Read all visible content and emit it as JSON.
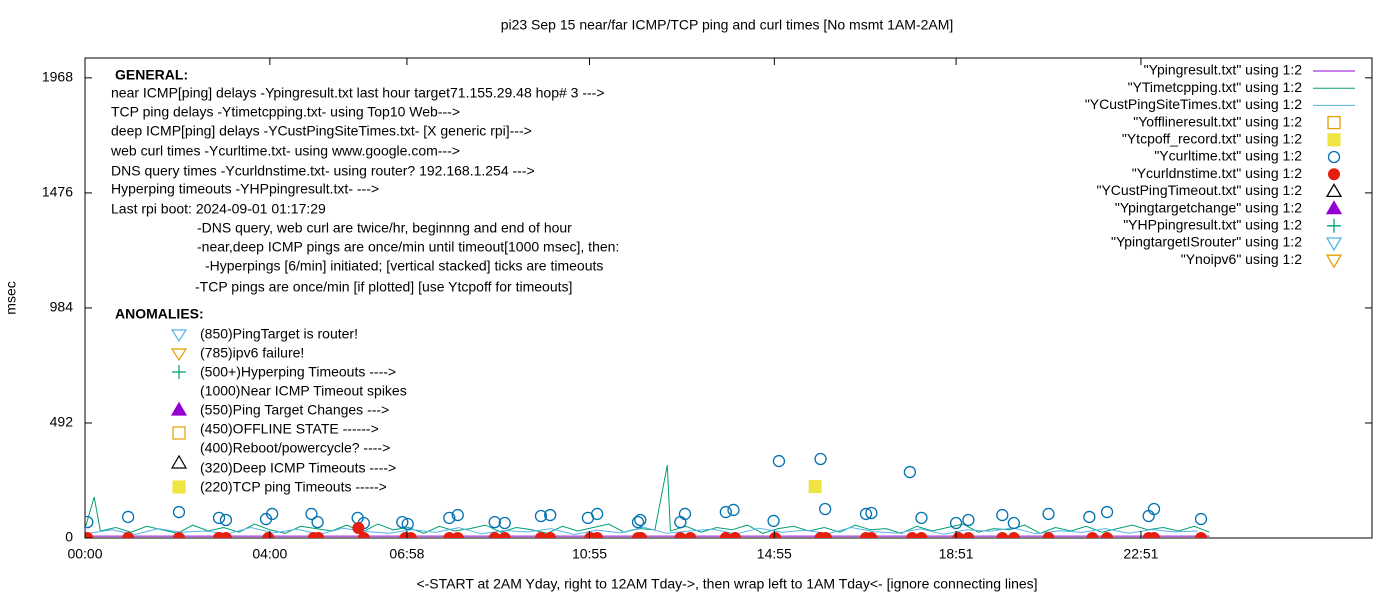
{
  "chart_data": {
    "type": "scatter",
    "title": "pi23 Sep 15  near/far ICMP/TCP ping and curl times [No msmt 1AM-2AM]",
    "xlabel": "<-START at 2AM Yday, right to 12AM Tday->, then wrap left to 1AM Tday<- [ignore connecting lines]",
    "ylabel": "msec",
    "xlim": [
      0,
      1671
    ],
    "ylim": [
      0,
      2053
    ],
    "xticks": [
      {
        "value": 0,
        "label": "00:00"
      },
      {
        "value": 240,
        "label": "04:00"
      },
      {
        "value": 418,
        "label": "06:58"
      },
      {
        "value": 655,
        "label": "10:55"
      },
      {
        "value": 895,
        "label": "14:55"
      },
      {
        "value": 1131,
        "label": "18:51"
      },
      {
        "value": 1371,
        "label": "22:51"
      }
    ],
    "yticks": [
      0,
      492,
      984,
      1476,
      1968
    ],
    "legend": "top-right",
    "annotations": [
      "GENERAL:",
      "near ICMP[ping] delays -Ypingresult.txt last hour target71.155.29.48 hop# 3 --->",
      "TCP ping delays -Ytimetcpping.txt- using Top10  Web--->",
      "deep ICMP[ping] delays -YCustPingSiteTimes.txt- [X generic rpi]--->",
      "web curl times -Ycurltime.txt- using www.google.com--->",
      "DNS query times -Ycurldnstime.txt- using router? 192.168.1.254  --->",
      "Hyperping timeouts -YHPpingresult.txt- --->",
      "Last rpi boot: 2024-09-01 01:17:29",
      "-DNS query, web curl are twice/hr, beginnng and end of hour",
      "-near,deep ICMP pings are once/min until timeout[1000 msec], then:",
      "-Hyperpings [6/min] initiated; [vertical stacked] ticks are timeouts",
      "-TCP pings are once/min  [if plotted] [use Ytcpoff for timeouts]",
      "ANOMALIES:",
      "(850)PingTarget is router!",
      "(785)ipv6 failure!",
      "(500+)Hyperping Timeouts ---->",
      "(1000)Near ICMP Timeout spikes",
      "(550)Ping Target Changes --->",
      "(450)OFFLINE STATE ------>",
      "(400)Reboot/powercycle? ---->",
      "(320)Deep ICMP Timeouts ---->",
      "(220)TCP ping Timeouts ----->"
    ],
    "series": [
      {
        "name": "\"Ypingresult.txt\" using 1:2",
        "color": "#9400d3",
        "style": "line",
        "x": [
          0,
          480,
          960,
          1460
        ],
        "values": [
          8,
          8,
          8,
          8
        ]
      },
      {
        "name": "\"YTimetcpping.txt\" using 1:2",
        "color": "#009e73",
        "style": "line",
        "x": [
          0,
          12,
          20,
          40,
          60,
          80,
          100,
          120,
          140,
          160,
          180,
          200,
          220,
          240,
          260,
          280,
          300,
          320,
          340,
          360,
          380,
          400,
          420,
          440,
          460,
          480,
          500,
          520,
          540,
          560,
          580,
          600,
          620,
          640,
          660,
          680,
          700,
          720,
          740,
          756,
          760,
          780,
          800,
          820,
          840,
          860,
          880,
          900,
          920,
          940,
          960,
          980,
          1000,
          1020,
          1040,
          1060,
          1080,
          1100,
          1120,
          1140,
          1160,
          1180,
          1200,
          1220,
          1240,
          1260,
          1280,
          1300,
          1320,
          1340,
          1360,
          1380,
          1400,
          1420,
          1440,
          1460
        ],
        "values": [
          40,
          175,
          30,
          45,
          25,
          50,
          35,
          20,
          55,
          30,
          45,
          25,
          60,
          35,
          20,
          50,
          40,
          30,
          55,
          25,
          60,
          35,
          45,
          20,
          50,
          30,
          40,
          55,
          25,
          45,
          35,
          20,
          50,
          30,
          45,
          60,
          25,
          40,
          35,
          312,
          30,
          50,
          25,
          45,
          35,
          55,
          20,
          40,
          50,
          30,
          45,
          25,
          55,
          35,
          40,
          20,
          50,
          30,
          45,
          60,
          25,
          40,
          35,
          55,
          20,
          45,
          30,
          50,
          25,
          40,
          55,
          35,
          45,
          30,
          50,
          25
        ]
      },
      {
        "name": "\"YCustPingSiteTimes.txt\" using 1:2",
        "color": "#56b4e9",
        "style": "line",
        "x": [
          5,
          35,
          65,
          95,
          125,
          155,
          185,
          215,
          245,
          275,
          305,
          335,
          365,
          395,
          425,
          455,
          485,
          515,
          545,
          575,
          605,
          635,
          665,
          695,
          725,
          755,
          785,
          815,
          845,
          875,
          905,
          935,
          965,
          995,
          1025,
          1055,
          1085,
          1115,
          1145,
          1175,
          1205,
          1235,
          1265,
          1295,
          1325,
          1355,
          1385,
          1415,
          1445
        ],
        "values": [
          20,
          35,
          15,
          40,
          25,
          30,
          18,
          45,
          22,
          38,
          16,
          42,
          28,
          20,
          36,
          24,
          44,
          18,
          32,
          26,
          40,
          15,
          34,
          22,
          46,
          20,
          30,
          38,
          17,
          42,
          25,
          33,
          19,
          45,
          27,
          21,
          39,
          16,
          35,
          29,
          43,
          18,
          31,
          24,
          40,
          20,
          36,
          26,
          30
        ]
      },
      {
        "name": "\"Yofflineresult.txt\" using 1:2",
        "color": "#e69f00",
        "style": "square-open",
        "x": [],
        "values": []
      },
      {
        "name": "\"Ytcpoff_record.txt\" using 1:2",
        "color": "#f0e442",
        "style": "square-filled",
        "x": [
          948
        ],
        "values": [
          220
        ]
      },
      {
        "name": "\"Ycurltime.txt\" using 1:2",
        "color": "#0072b2",
        "style": "circle-open",
        "x": [
          3,
          56,
          122,
          174,
          183,
          235,
          243,
          294,
          302,
          354,
          362,
          412,
          419,
          473,
          484,
          532,
          545,
          592,
          604,
          653,
          665,
          718,
          721,
          773,
          779,
          832,
          842,
          894,
          901,
          955,
          961,
          1014,
          1021,
          1071,
          1086,
          1131,
          1147,
          1191,
          1206,
          1251,
          1304,
          1327,
          1381,
          1388,
          1449
        ],
        "values": [
          68,
          90,
          111,
          86,
          77,
          81,
          103,
          103,
          68,
          86,
          64,
          68,
          60,
          86,
          98,
          68,
          64,
          94,
          98,
          86,
          103,
          68,
          77,
          68,
          103,
          111,
          120,
          73,
          329,
          338,
          124,
          103,
          107,
          282,
          86,
          64,
          77,
          98,
          64,
          103,
          90,
          111,
          94,
          124,
          81
        ]
      },
      {
        "name": "\"Ycurldnstime.txt\" using 1:2",
        "color": "#e51e10",
        "style": "circle-filled",
        "x": [
          3,
          56,
          122,
          174,
          183,
          238,
          297,
          303,
          355,
          362,
          416,
          423,
          473,
          484,
          532,
          545,
          592,
          604,
          656,
          665,
          718,
          722,
          773,
          786,
          832,
          844,
          896,
          955,
          962,
          1014,
          1021,
          1074,
          1086,
          1134,
          1147,
          1191,
          1206,
          1251,
          1308,
          1327,
          1381,
          1388,
          1449
        ],
        "values": [
          0,
          0,
          0,
          0,
          0,
          0,
          0,
          0,
          43,
          0,
          0,
          0,
          0,
          0,
          0,
          0,
          0,
          0,
          0,
          0,
          0,
          0,
          0,
          0,
          0,
          0,
          0,
          0,
          0,
          0,
          0,
          0,
          0,
          0,
          0,
          0,
          0,
          0,
          0,
          0,
          0,
          0,
          0
        ]
      },
      {
        "name": "\"YCustPingTimeout.txt\" using 1:2",
        "color": "#000000",
        "style": "triangle-open",
        "x": [],
        "values": []
      },
      {
        "name": "\"Ypingtargetchange\" using 1:2",
        "color": "#9400d3",
        "style": "triangle-filled",
        "x": [],
        "values": []
      },
      {
        "name": "\"YHPpingresult.txt\" using 1:2",
        "color": "#009e73",
        "style": "plus",
        "x": [],
        "values": []
      },
      {
        "name": "\"YpingtargetISrouter\" using 1:2",
        "color": "#56b4e9",
        "style": "tri-down-open",
        "x": [],
        "values": []
      },
      {
        "name": "\"Ynoipv6\" using 1:2",
        "color": "#e69f00",
        "style": "tri-down-open",
        "x": [],
        "values": []
      }
    ]
  }
}
